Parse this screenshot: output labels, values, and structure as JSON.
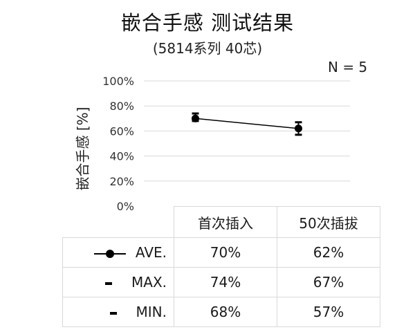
{
  "chart_data": {
    "type": "line",
    "title": "嵌合手感  测试结果",
    "subtitle": "(5814系列 40芯)",
    "annotation": "N = 5",
    "ylabel": "嵌合手感 [%]",
    "xlabel": "",
    "ylim": [
      0,
      100
    ],
    "yticks": [
      "0%",
      "20%",
      "40%",
      "60%",
      "80%",
      "100%"
    ],
    "ytick_values": [
      0,
      20,
      40,
      60,
      80,
      100
    ],
    "categories": [
      "首次插入",
      "50次插拔"
    ],
    "series": [
      {
        "name": "AVE.",
        "values": [
          70,
          62
        ],
        "labels": [
          "70%",
          "62%"
        ]
      },
      {
        "name": "MAX.",
        "values": [
          74,
          67
        ],
        "labels": [
          "74%",
          "67%"
        ]
      },
      {
        "name": "MIN.",
        "values": [
          68,
          57
        ],
        "labels": [
          "68%",
          "57%"
        ]
      }
    ],
    "grid": true,
    "legend": "data-table below chart",
    "colors": {
      "line": "#000000",
      "grid": "#d9d9d9"
    }
  }
}
